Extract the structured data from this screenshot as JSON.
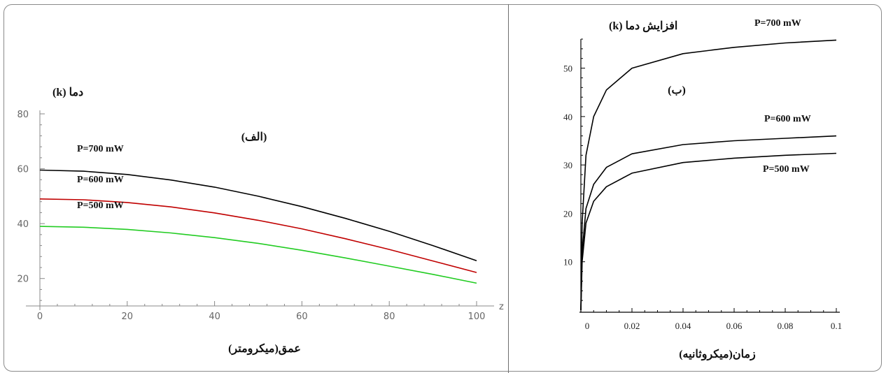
{
  "chart_data": [
    {
      "type": "line",
      "panel_label": "(الف)",
      "ylabel": "دما (k)",
      "xlabel": "عمق(میکرومتر)",
      "x_axis_letter": "z",
      "xlim": [
        0,
        100
      ],
      "ylim": [
        10,
        80
      ],
      "xticks": [
        "0",
        "20",
        "40",
        "60",
        "80",
        "100"
      ],
      "yticks": [
        "20",
        "40",
        "60",
        "80"
      ],
      "grid": false,
      "series": [
        {
          "name": "P=700 mW",
          "color": "#000000",
          "x": [
            0,
            10,
            20,
            30,
            40,
            50,
            60,
            70,
            80,
            90,
            100
          ],
          "y": [
            59.5,
            59.1,
            57.9,
            55.9,
            53.3,
            50.0,
            46.2,
            41.9,
            37.2,
            32.0,
            26.5
          ]
        },
        {
          "name": "P=600 mW",
          "color": "#c00000",
          "x": [
            0,
            10,
            20,
            30,
            40,
            50,
            60,
            70,
            80,
            90,
            100
          ],
          "y": [
            49.0,
            48.7,
            47.7,
            46.1,
            43.9,
            41.2,
            38.1,
            34.5,
            30.6,
            26.4,
            22.2
          ]
        },
        {
          "name": "P=500 mW",
          "color": "#22cc22",
          "x": [
            0,
            10,
            20,
            30,
            40,
            50,
            60,
            70,
            80,
            90,
            100
          ],
          "y": [
            39.0,
            38.7,
            37.9,
            36.6,
            34.9,
            32.8,
            30.3,
            27.5,
            24.5,
            21.5,
            18.3
          ]
        }
      ]
    },
    {
      "type": "line",
      "panel_label": "(ب)",
      "ylabel": "افزایش دما (k)",
      "xlabel": "زمان(میکروثانیه)",
      "xlim": [
        0,
        0.1
      ],
      "ylim": [
        0,
        56
      ],
      "xticks": [
        "0",
        "0.02",
        "0.04",
        "0.06",
        "0.08",
        "0.1"
      ],
      "yticks": [
        "10",
        "20",
        "30",
        "40",
        "50"
      ],
      "grid": false,
      "series": [
        {
          "name": "P=700 mW",
          "color": "#000000",
          "x": [
            0,
            0.0005,
            0.002,
            0.005,
            0.01,
            0.02,
            0.04,
            0.06,
            0.08,
            0.1
          ],
          "y": [
            0,
            18,
            32,
            40,
            45.5,
            50,
            53,
            54.3,
            55.2,
            55.8
          ]
        },
        {
          "name": "P=600 mW",
          "color": "#000000",
          "x": [
            0,
            0.0005,
            0.002,
            0.005,
            0.01,
            0.02,
            0.04,
            0.06,
            0.08,
            0.1
          ],
          "y": [
            0,
            12,
            21,
            26,
            29.5,
            32.3,
            34.2,
            35.0,
            35.5,
            36.0
          ]
        },
        {
          "name": "P=500 mW",
          "color": "#000000",
          "x": [
            0,
            0.0005,
            0.002,
            0.005,
            0.01,
            0.02,
            0.04,
            0.06,
            0.08,
            0.1
          ],
          "y": [
            0,
            10,
            18,
            22.5,
            25.5,
            28.3,
            30.5,
            31.4,
            32.0,
            32.4
          ]
        }
      ]
    }
  ]
}
